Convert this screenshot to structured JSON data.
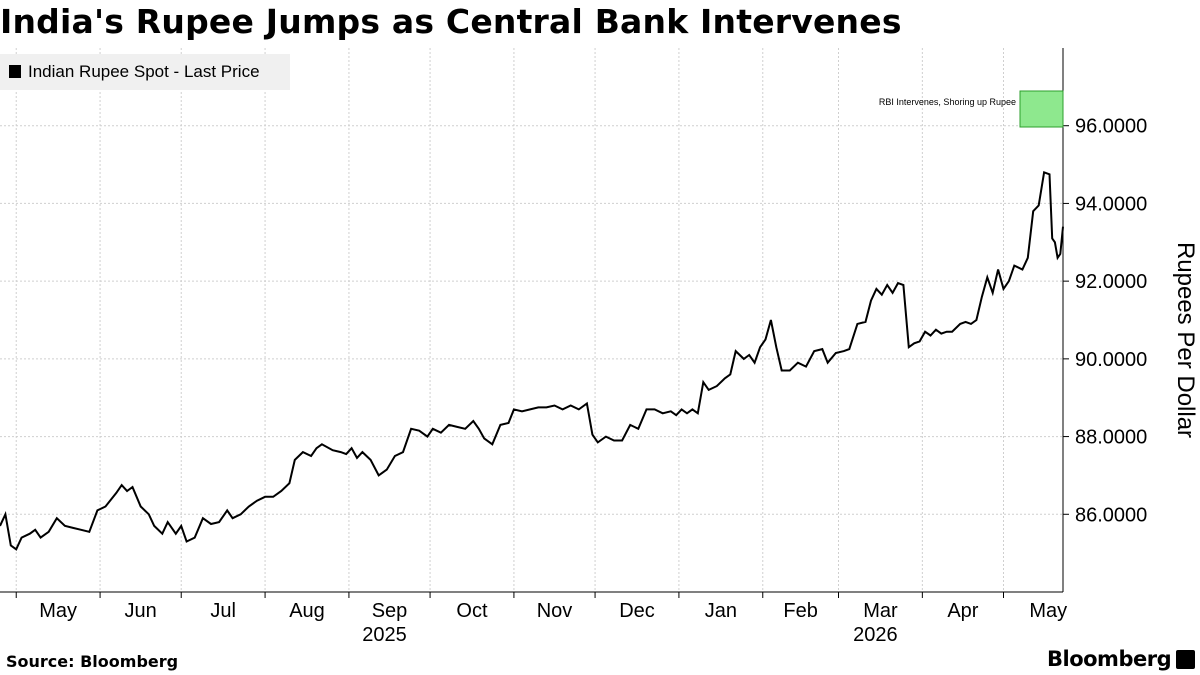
{
  "title": "India's Rupee Jumps as Central Bank Intervenes",
  "legend": {
    "label": "Indian Rupee Spot - Last Price",
    "color": "#000000"
  },
  "source": "Source: Bloomberg",
  "brand": "Bloomberg",
  "annotation": {
    "text": "RBI Intervenes, Shoring up Rupee",
    "highlight_color": "#8ee88e",
    "highlight_border": "#2c9f2c"
  },
  "chart_data": {
    "type": "line",
    "ylabel": "Rupees Per Dollar",
    "ylim": [
      84.0,
      98.0
    ],
    "yticks": [
      86,
      88,
      90,
      92,
      94,
      96
    ],
    "ytick_labels": [
      "86.0000",
      "88.0000",
      "90.0000",
      "92.0000",
      "94.0000",
      "96.0000"
    ],
    "y_axis_position": "right",
    "grid": true,
    "legend_position": "top-left",
    "xlim": [
      "2025-04-25",
      "2026-05-23"
    ],
    "x_months": [
      {
        "label": "May",
        "date": "2025-05-01"
      },
      {
        "label": "Jun",
        "date": "2025-06-01"
      },
      {
        "label": "Jul",
        "date": "2025-07-01"
      },
      {
        "label": "Aug",
        "date": "2025-08-01"
      },
      {
        "label": "Sep",
        "date": "2025-09-01"
      },
      {
        "label": "Oct",
        "date": "2025-10-01"
      },
      {
        "label": "Nov",
        "date": "2025-11-01"
      },
      {
        "label": "Dec",
        "date": "2025-12-01"
      },
      {
        "label": "Jan",
        "date": "2026-01-01"
      },
      {
        "label": "Feb",
        "date": "2026-02-01"
      },
      {
        "label": "Mar",
        "date": "2026-03-01"
      },
      {
        "label": "Apr",
        "date": "2026-04-01"
      },
      {
        "label": "May",
        "date": "2026-05-01"
      }
    ],
    "x_years": [
      {
        "label": "2025",
        "date": "2025-09-01"
      },
      {
        "label": "2026",
        "date": "2026-03-01"
      }
    ],
    "series": [
      {
        "color": "#000000",
        "points": [
          [
            "2025-04-25",
            85.7
          ],
          [
            "2025-04-27",
            86.0
          ],
          [
            "2025-04-29",
            85.2
          ],
          [
            "2025-05-01",
            85.1
          ],
          [
            "2025-05-03",
            85.4
          ],
          [
            "2025-05-06",
            85.5
          ],
          [
            "2025-05-08",
            85.6
          ],
          [
            "2025-05-10",
            85.4
          ],
          [
            "2025-05-13",
            85.55
          ],
          [
            "2025-05-16",
            85.9
          ],
          [
            "2025-05-19",
            85.7
          ],
          [
            "2025-05-22",
            85.65
          ],
          [
            "2025-05-25",
            85.6
          ],
          [
            "2025-05-28",
            85.55
          ],
          [
            "2025-05-31",
            86.1
          ],
          [
            "2025-06-03",
            86.2
          ],
          [
            "2025-06-07",
            86.55
          ],
          [
            "2025-06-09",
            86.75
          ],
          [
            "2025-06-11",
            86.6
          ],
          [
            "2025-06-13",
            86.7
          ],
          [
            "2025-06-16",
            86.2
          ],
          [
            "2025-06-19",
            86.0
          ],
          [
            "2025-06-21",
            85.7
          ],
          [
            "2025-06-24",
            85.5
          ],
          [
            "2025-06-26",
            85.8
          ],
          [
            "2025-06-29",
            85.5
          ],
          [
            "2025-07-01",
            85.7
          ],
          [
            "2025-07-03",
            85.3
          ],
          [
            "2025-07-06",
            85.4
          ],
          [
            "2025-07-09",
            85.9
          ],
          [
            "2025-07-12",
            85.75
          ],
          [
            "2025-07-15",
            85.8
          ],
          [
            "2025-07-18",
            86.1
          ],
          [
            "2025-07-20",
            85.9
          ],
          [
            "2025-07-23",
            86.0
          ],
          [
            "2025-07-26",
            86.2
          ],
          [
            "2025-07-29",
            86.35
          ],
          [
            "2025-08-01",
            86.45
          ],
          [
            "2025-08-04",
            86.45
          ],
          [
            "2025-08-07",
            86.6
          ],
          [
            "2025-08-10",
            86.8
          ],
          [
            "2025-08-12",
            87.4
          ],
          [
            "2025-08-15",
            87.6
          ],
          [
            "2025-08-18",
            87.5
          ],
          [
            "2025-08-20",
            87.7
          ],
          [
            "2025-08-22",
            87.8
          ],
          [
            "2025-08-26",
            87.65
          ],
          [
            "2025-08-29",
            87.6
          ],
          [
            "2025-08-31",
            87.55
          ],
          [
            "2025-09-02",
            87.7
          ],
          [
            "2025-09-04",
            87.45
          ],
          [
            "2025-09-06",
            87.6
          ],
          [
            "2025-09-09",
            87.4
          ],
          [
            "2025-09-12",
            87.0
          ],
          [
            "2025-09-15",
            87.15
          ],
          [
            "2025-09-18",
            87.5
          ],
          [
            "2025-09-21",
            87.6
          ],
          [
            "2025-09-24",
            88.2
          ],
          [
            "2025-09-27",
            88.15
          ],
          [
            "2025-09-30",
            88.0
          ],
          [
            "2025-10-02",
            88.2
          ],
          [
            "2025-10-05",
            88.1
          ],
          [
            "2025-10-08",
            88.3
          ],
          [
            "2025-10-11",
            88.25
          ],
          [
            "2025-10-14",
            88.2
          ],
          [
            "2025-10-17",
            88.4
          ],
          [
            "2025-10-19",
            88.2
          ],
          [
            "2025-10-21",
            87.95
          ],
          [
            "2025-10-24",
            87.8
          ],
          [
            "2025-10-27",
            88.3
          ],
          [
            "2025-10-30",
            88.35
          ],
          [
            "2025-11-01",
            88.7
          ],
          [
            "2025-11-04",
            88.65
          ],
          [
            "2025-11-07",
            88.7
          ],
          [
            "2025-11-10",
            88.75
          ],
          [
            "2025-11-13",
            88.75
          ],
          [
            "2025-11-16",
            88.8
          ],
          [
            "2025-11-19",
            88.7
          ],
          [
            "2025-11-22",
            88.8
          ],
          [
            "2025-11-25",
            88.7
          ],
          [
            "2025-11-28",
            88.85
          ],
          [
            "2025-11-30",
            88.05
          ],
          [
            "2025-12-02",
            87.85
          ],
          [
            "2025-12-05",
            88.0
          ],
          [
            "2025-12-08",
            87.9
          ],
          [
            "2025-12-11",
            87.9
          ],
          [
            "2025-12-14",
            88.3
          ],
          [
            "2025-12-17",
            88.2
          ],
          [
            "2025-12-20",
            88.7
          ],
          [
            "2025-12-23",
            88.7
          ],
          [
            "2025-12-26",
            88.6
          ],
          [
            "2025-12-29",
            88.65
          ],
          [
            "2025-12-31",
            88.55
          ],
          [
            "2026-01-02",
            88.7
          ],
          [
            "2026-01-04",
            88.6
          ],
          [
            "2026-01-06",
            88.7
          ],
          [
            "2026-01-08",
            88.6
          ],
          [
            "2026-01-10",
            89.4
          ],
          [
            "2026-01-12",
            89.2
          ],
          [
            "2026-01-15",
            89.3
          ],
          [
            "2026-01-18",
            89.5
          ],
          [
            "2026-01-20",
            89.6
          ],
          [
            "2026-01-22",
            90.2
          ],
          [
            "2026-01-25",
            90.0
          ],
          [
            "2026-01-27",
            90.1
          ],
          [
            "2026-01-29",
            89.9
          ],
          [
            "2026-01-31",
            90.3
          ],
          [
            "2026-02-02",
            90.5
          ],
          [
            "2026-02-04",
            91.0
          ],
          [
            "2026-02-06",
            90.3
          ],
          [
            "2026-02-08",
            89.7
          ],
          [
            "2026-02-11",
            89.7
          ],
          [
            "2026-02-14",
            89.9
          ],
          [
            "2026-02-17",
            89.8
          ],
          [
            "2026-02-20",
            90.2
          ],
          [
            "2026-02-23",
            90.25
          ],
          [
            "2026-02-25",
            89.9
          ],
          [
            "2026-02-28",
            90.15
          ],
          [
            "2026-03-03",
            90.2
          ],
          [
            "2026-03-05",
            90.25
          ],
          [
            "2026-03-08",
            90.9
          ],
          [
            "2026-03-11",
            90.95
          ],
          [
            "2026-03-13",
            91.5
          ],
          [
            "2026-03-15",
            91.8
          ],
          [
            "2026-03-17",
            91.65
          ],
          [
            "2026-03-19",
            91.9
          ],
          [
            "2026-03-21",
            91.7
          ],
          [
            "2026-03-23",
            91.95
          ],
          [
            "2026-03-25",
            91.9
          ],
          [
            "2026-03-27",
            90.3
          ],
          [
            "2026-03-29",
            90.4
          ],
          [
            "2026-03-31",
            90.45
          ],
          [
            "2026-04-02",
            90.7
          ],
          [
            "2026-04-04",
            90.6
          ],
          [
            "2026-04-06",
            90.75
          ],
          [
            "2026-04-08",
            90.65
          ],
          [
            "2026-04-10",
            90.7
          ],
          [
            "2026-04-12",
            90.7
          ],
          [
            "2026-04-15",
            90.9
          ],
          [
            "2026-04-17",
            90.95
          ],
          [
            "2026-04-19",
            90.9
          ],
          [
            "2026-04-21",
            91.0
          ],
          [
            "2026-04-23",
            91.6
          ],
          [
            "2026-04-25",
            92.1
          ],
          [
            "2026-04-27",
            91.7
          ],
          [
            "2026-04-29",
            92.3
          ],
          [
            "2026-05-01",
            91.8
          ],
          [
            "2026-05-03",
            92.0
          ],
          [
            "2026-05-05",
            92.4
          ],
          [
            "2026-05-08",
            92.3
          ],
          [
            "2026-05-10",
            92.6
          ],
          [
            "2026-05-12",
            93.8
          ],
          [
            "2026-05-14",
            93.95
          ],
          [
            "2026-05-16",
            94.8
          ],
          [
            "2026-05-18",
            94.75
          ],
          [
            "2026-05-19",
            93.1
          ],
          [
            "2026-05-20",
            93.0
          ],
          [
            "2026-05-21",
            92.6
          ],
          [
            "2026-05-22",
            92.7
          ],
          [
            "2026-05-23",
            93.4
          ]
        ]
      }
    ]
  }
}
